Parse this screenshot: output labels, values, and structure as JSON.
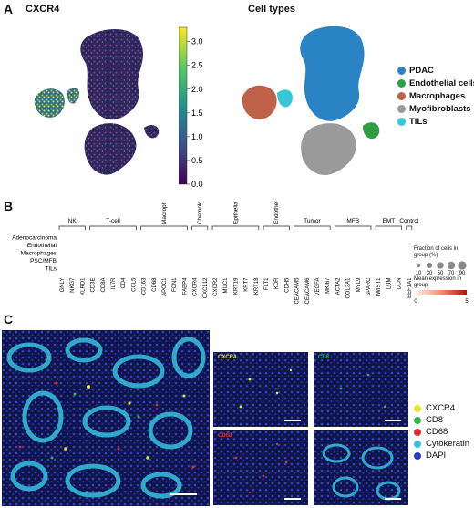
{
  "panelA": {
    "label": "A",
    "left_title": "CXCR4",
    "right_title": "Cell types",
    "colorbar_ticks": [
      "3.0",
      "2.5",
      "2.0",
      "1.5",
      "1.0",
      "0.5",
      "0.0"
    ],
    "colorbar_top_tick_value": 3.0,
    "colorbar_max_value": 3.3,
    "legend": [
      {
        "label": "PDAC",
        "color": "#2a83c4"
      },
      {
        "label": "Endothelial cells",
        "color": "#2ea043"
      },
      {
        "label": "Macrophages",
        "color": "#c0624a"
      },
      {
        "label": "Myofibroblasts",
        "color": "#9a9a9a"
      },
      {
        "label": "TILs",
        "color": "#36c8d8"
      }
    ]
  },
  "panelB": {
    "label": "B",
    "group_labels": [
      "NK",
      "T-cell",
      "Macrophages",
      "Chemokines",
      "Epithelial",
      "Endothelial",
      "Tumor",
      "MFB",
      "EMT",
      "Control"
    ],
    "rows": [
      "Adenocarcinoma",
      "Endothelial",
      "Macrophages",
      "PSC/MFB",
      "TILs"
    ],
    "genes": [
      "GNLY",
      "NKG7",
      "KLRD1",
      "CD3E",
      "CD8A",
      "IL7R",
      "CD4",
      "CCL5",
      "CD163",
      "CD68",
      "APOC1",
      "FCN1",
      "FABP4",
      "CXCR4",
      "CXCL12",
      "CXCR2",
      "MUC1",
      "KRT19",
      "KRT7",
      "KRT18",
      "FLT1",
      "KDR",
      "CDH5",
      "CEACAM5",
      "CEACAM6",
      "VEGFA",
      "MKI67",
      "ACTA2",
      "COL3A1",
      "MYL9",
      "SPARC",
      "TWIST1",
      "LUM",
      "DCN",
      "EEF1A1"
    ],
    "size_legend_title": "Fraction of cells in group (%)",
    "size_legend_values": [
      "10",
      "30",
      "50",
      "70",
      "90"
    ],
    "color_legend_title": "Mean expression in group",
    "color_legend_ticks": [
      "0",
      "5"
    ]
  },
  "panelC": {
    "label": "C",
    "channel_labels": [
      "CXCR4",
      "CD8",
      "CD68"
    ],
    "legend": [
      {
        "label": "CXCR4",
        "color": "#e6e62a"
      },
      {
        "label": "CD8",
        "color": "#2fb84a"
      },
      {
        "label": "CD68",
        "color": "#e02a2a"
      },
      {
        "label": "Cytokeratin",
        "color": "#36c3e0"
      },
      {
        "label": "DAPI",
        "color": "#2b36c8"
      }
    ]
  }
}
